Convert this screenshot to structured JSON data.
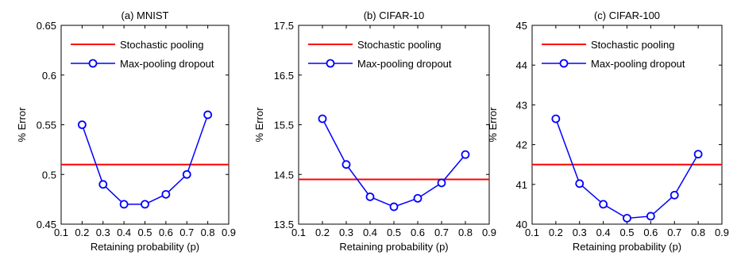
{
  "chart_data": [
    {
      "type": "line",
      "title": "(a) MNIST",
      "xlabel": "Retaining probability (p)",
      "ylabel": "% Error",
      "xlim": [
        0.1,
        0.9
      ],
      "ylim": [
        0.45,
        0.65
      ],
      "xticks": [
        "0.1",
        "0.2",
        "0.3",
        "0.4",
        "0.5",
        "0.6",
        "0.7",
        "0.8",
        "0.9"
      ],
      "yticks": [
        "0.45",
        "0.5",
        "0.55",
        "0.6",
        "0.65"
      ],
      "legend_position": "top",
      "series": [
        {
          "name": "Stochastic pooling",
          "style": "horizontal-line",
          "color": "#ff0000",
          "y": 0.51
        },
        {
          "name": "Max-pooling dropout",
          "style": "line-circle",
          "color": "#0000ff",
          "x": [
            0.2,
            0.3,
            0.4,
            0.5,
            0.6,
            0.7,
            0.8
          ],
          "y": [
            0.55,
            0.49,
            0.47,
            0.47,
            0.48,
            0.5,
            0.56
          ]
        }
      ]
    },
    {
      "type": "line",
      "title": "(b) CIFAR-10",
      "xlabel": "Retaining probability (p)",
      "ylabel": "% Error",
      "xlim": [
        0.1,
        0.9
      ],
      "ylim": [
        13.5,
        17.5
      ],
      "xticks": [
        "0.1",
        "0.2",
        "0.3",
        "0.4",
        "0.5",
        "0.6",
        "0.7",
        "0.8",
        "0.9"
      ],
      "yticks": [
        "13.5",
        "14.5",
        "15.5",
        "16.5",
        "17.5"
      ],
      "legend_position": "top",
      "series": [
        {
          "name": "Stochastic pooling",
          "style": "horizontal-line",
          "color": "#ff0000",
          "y": 14.4
        },
        {
          "name": "Max-pooling dropout",
          "style": "line-circle",
          "color": "#0000ff",
          "x": [
            0.2,
            0.3,
            0.4,
            0.5,
            0.6,
            0.7,
            0.8
          ],
          "y": [
            15.62,
            14.7,
            14.05,
            13.85,
            14.02,
            14.33,
            14.9
          ]
        }
      ]
    },
    {
      "type": "line",
      "title": "(c) CIFAR-100",
      "xlabel": "Retaining probability (p)",
      "ylabel": "% Error",
      "xlim": [
        0.1,
        0.9
      ],
      "ylim": [
        40,
        45
      ],
      "xticks": [
        "0.1",
        "0.2",
        "0.3",
        "0.4",
        "0.5",
        "0.6",
        "0.7",
        "0.8",
        "0.9"
      ],
      "yticks": [
        "40",
        "41",
        "42",
        "43",
        "44",
        "45"
      ],
      "legend_position": "top",
      "series": [
        {
          "name": "Stochastic pooling",
          "style": "horizontal-line",
          "color": "#ff0000",
          "y": 41.5
        },
        {
          "name": "Max-pooling dropout",
          "style": "line-circle",
          "color": "#0000ff",
          "x": [
            0.2,
            0.3,
            0.4,
            0.5,
            0.6,
            0.7,
            0.8
          ],
          "y": [
            42.65,
            41.02,
            40.5,
            40.15,
            40.2,
            40.73,
            41.76
          ]
        }
      ]
    }
  ]
}
